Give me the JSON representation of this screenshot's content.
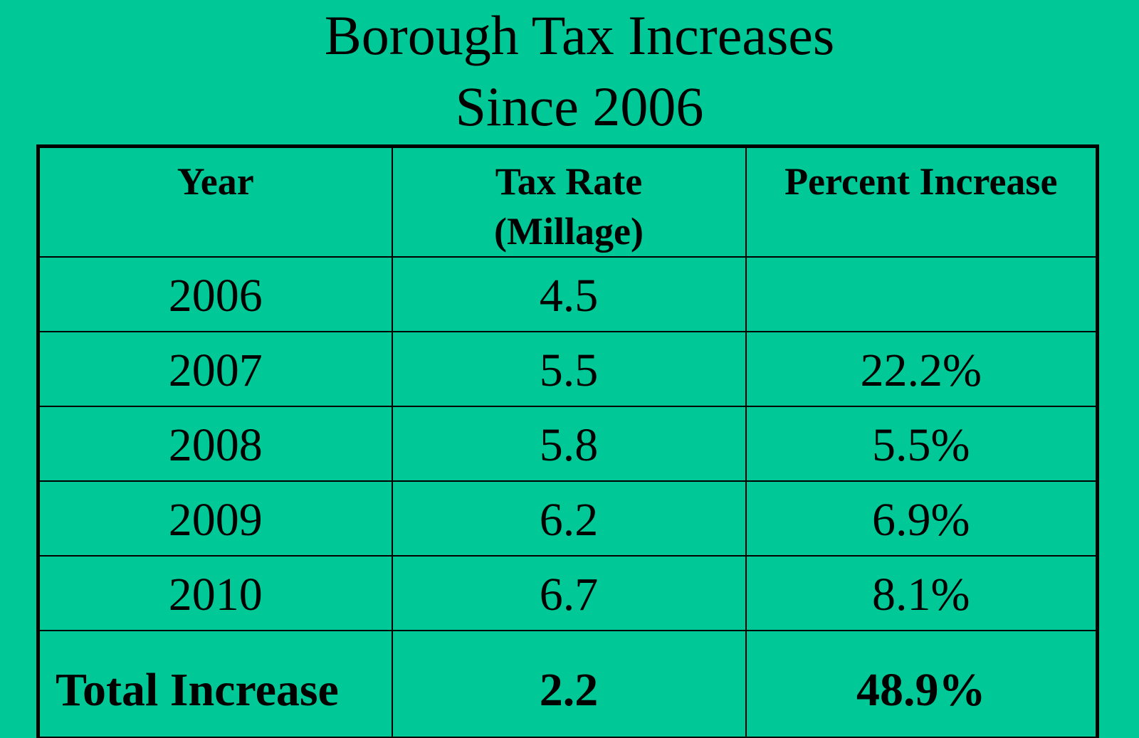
{
  "title": {
    "line1": "Borough Tax Increases",
    "line2": "Since 2006"
  },
  "table": {
    "headers": {
      "year": "Year",
      "tax_rate_line1": "Tax Rate",
      "tax_rate_line2": "(Millage)",
      "percent": "Percent Increase"
    },
    "rows": [
      {
        "year": "2006",
        "rate": "4.5",
        "percent": ""
      },
      {
        "year": "2007",
        "rate": "5.5",
        "percent": "22.2%"
      },
      {
        "year": "2008",
        "rate": "5.8",
        "percent": "5.5%"
      },
      {
        "year": "2009",
        "rate": "6.2",
        "percent": "6.9%"
      },
      {
        "year": "2010",
        "rate": "6.7",
        "percent": "8.1%"
      }
    ],
    "total": {
      "label": "Total Increase",
      "rate": "2.2",
      "percent": "48.9%"
    }
  },
  "colors": {
    "background": "#00c896",
    "text": "#000000"
  }
}
